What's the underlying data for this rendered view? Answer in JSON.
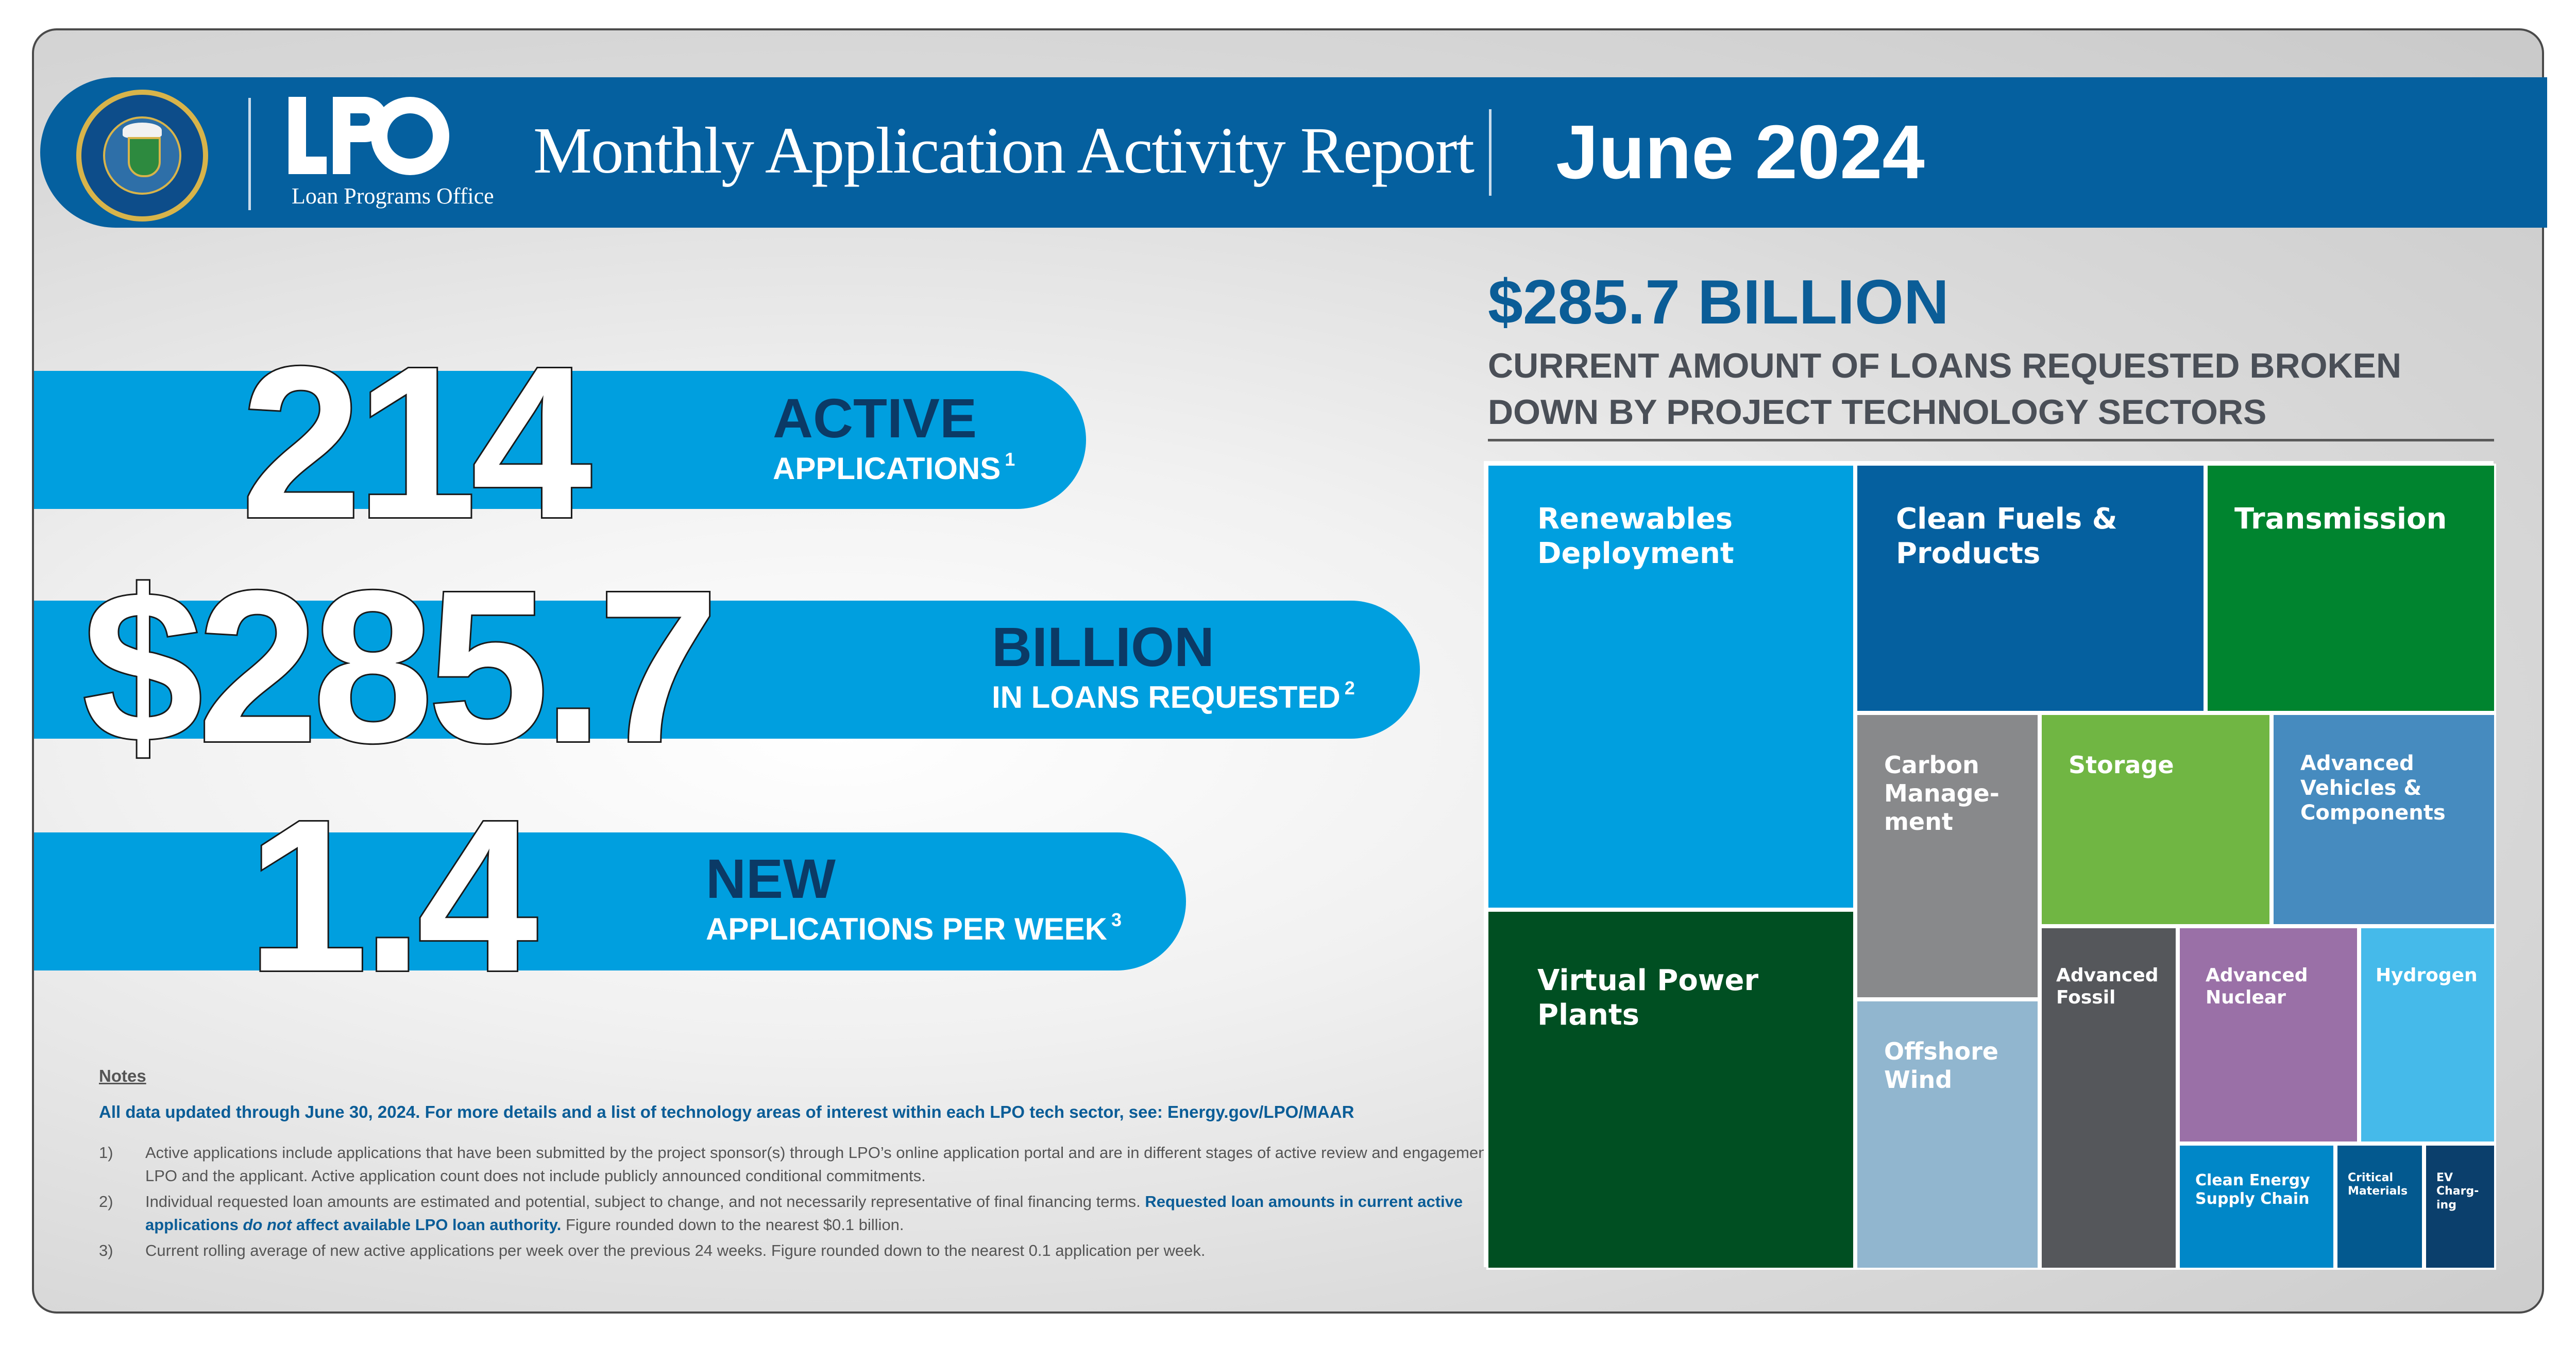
{
  "header": {
    "seal_text": "DEPARTMENT OF ENERGY · UNITED STATES OF AMERICA",
    "logo_text": "LPO",
    "logo_subtitle": "Loan Programs Office",
    "report_title": "Monthly Application Activity Report",
    "report_date": "June 2024"
  },
  "stats": [
    {
      "value": "214",
      "label": "ACTIVE",
      "sub": "APPLICATIONS",
      "footnote": "1"
    },
    {
      "value": "$285.7",
      "label": "BILLION",
      "sub": "IN LOANS REQUESTED",
      "footnote": "2"
    },
    {
      "value": "1.4",
      "label": "NEW",
      "sub": "APPLICATIONS PER WEEK",
      "footnote": "3"
    }
  ],
  "notes": {
    "title": "Notes",
    "lead": "All data updated through June 30, 2024. For more details and a list of technology areas of interest within each LPO tech sector, see: Energy.gov/LPO/MAAR",
    "items": [
      {
        "num": "1)",
        "text": "Active applications include applications that have been submitted by the project sponsor(s) through LPO’s online application portal and are in different stages of active review and engagement by LPO and the applicant. Active application count does not include publicly announced conditional commitments."
      },
      {
        "num": "2)",
        "text_a": "Individual requested loan amounts are estimated and potential, subject to change, and not necessarily representative of final financing terms.",
        "text_b": "Requested loan amounts in current active applications",
        "text_c": "do not",
        "text_d": "affect available LPO loan authority.",
        "text_e": "Figure rounded down to the nearest $0.1 billion."
      },
      {
        "num": "3)",
        "text": "Current rolling average of new active applications per week over the previous 24 weeks. Figure rounded down to the nearest 0.1 application per week."
      }
    ]
  },
  "breakdown": {
    "headline": "$285.7 BILLION",
    "subtitle": "CURRENT AMOUNT OF LOANS REQUESTED BROKEN DOWN BY PROJECT TECHNOLOGY SECTORS",
    "sectors": [
      {
        "id": "renewables",
        "label": "Renewables Deployment",
        "color": "#009fdf"
      },
      {
        "id": "virtual",
        "label": "Virtual Power Plants",
        "color": "#004f22"
      },
      {
        "id": "fuels",
        "label": "Clean Fuels & Products",
        "color": "#05609f"
      },
      {
        "id": "transmission",
        "label": "Transmission",
        "color": "#00842f"
      },
      {
        "id": "carbon",
        "label": "Carbon Manage-ment",
        "color": "#88898b"
      },
      {
        "id": "storage",
        "label": "Storage",
        "color": "#70b643"
      },
      {
        "id": "vehicles",
        "label": "Advanced Vehicles & Components",
        "color": "#468bbf"
      },
      {
        "id": "offshore",
        "label": "Offshore Wind",
        "color": "#91b6cf"
      },
      {
        "id": "fossil",
        "label": "Advanced Fossil",
        "color": "#55575b"
      },
      {
        "id": "nuclear",
        "label": "Advanced Nuclear",
        "color": "#9a70a7"
      },
      {
        "id": "hydrogen",
        "label": "Hydrogen",
        "color": "#45baea"
      },
      {
        "id": "supply",
        "label": "Clean Energy Supply Chain",
        "color": "#0087c8"
      },
      {
        "id": "critical",
        "label": "Critical Materials",
        "color": "#03598f"
      },
      {
        "id": "ev",
        "label": "EV Charg-ing",
        "color": "#0b3f6c"
      }
    ]
  }
}
